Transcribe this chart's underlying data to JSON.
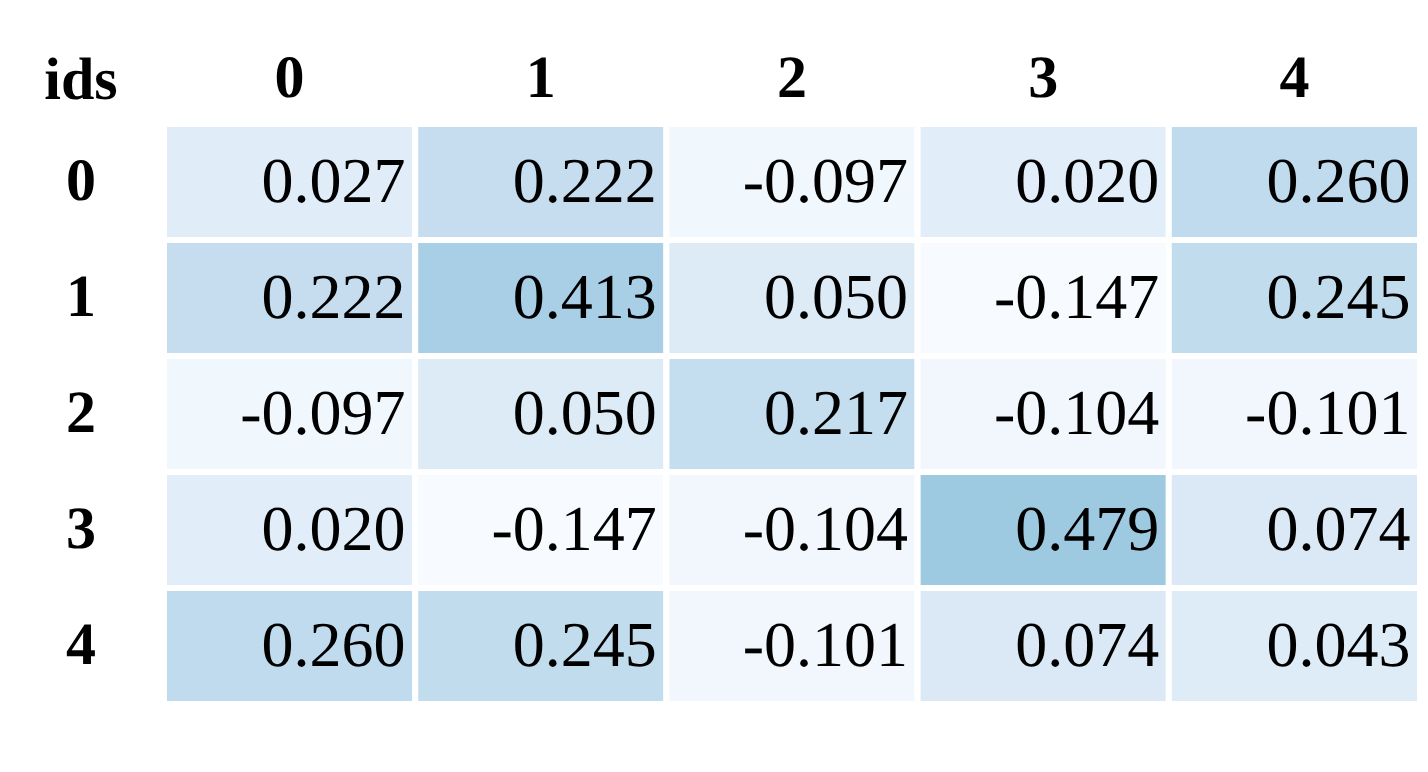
{
  "chart_data": {
    "type": "heatmap",
    "ylabel": "ids",
    "categories": [
      "0",
      "1",
      "2",
      "3",
      "4"
    ],
    "y_categories": [
      "0",
      "1",
      "2",
      "3",
      "4"
    ],
    "cells": [
      [
        0.027,
        0.222,
        -0.097,
        0.02,
        0.26
      ],
      [
        0.222,
        0.413,
        0.05,
        -0.147,
        0.245
      ],
      [
        -0.097,
        0.05,
        0.217,
        -0.104,
        -0.101
      ],
      [
        0.02,
        -0.147,
        -0.104,
        0.479,
        0.074
      ],
      [
        0.26,
        0.245,
        -0.101,
        0.074,
        0.043
      ]
    ],
    "cell_labels": [
      [
        "0.027",
        "0.222",
        "-0.097",
        "0.020",
        "0.260"
      ],
      [
        "0.222",
        "0.413",
        "0.050",
        "-0.147",
        "0.245"
      ],
      [
        "-0.097",
        "0.050",
        "0.217",
        "-0.104",
        "-0.101"
      ],
      [
        "0.020",
        "-0.147",
        "-0.104",
        "0.479",
        "0.074"
      ],
      [
        "0.260",
        "0.245",
        "-0.101",
        "0.074",
        "0.043"
      ]
    ]
  }
}
